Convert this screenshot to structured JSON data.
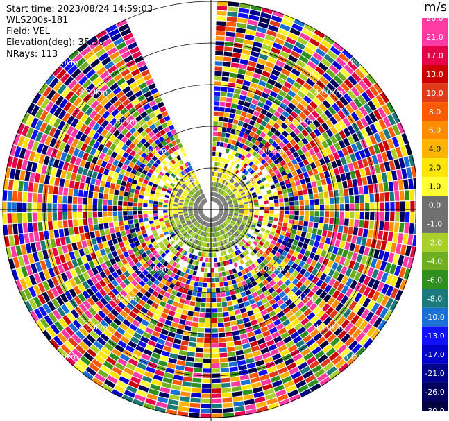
{
  "header": {
    "start_time": "Start time: 2023/08/24 14:59:03",
    "instrument": "WLS200s-181",
    "field": "Field: VEL",
    "elevation": "Elevation(deg): 35.30",
    "nrays": "NRays: 113"
  },
  "colorbar": {
    "title": "m/s",
    "ticks": [
      "26.0",
      "21.0",
      "17.0",
      "13.0",
      "10.0",
      "8.0",
      "6.0",
      "4.0",
      "2.0",
      "1.0",
      "0.0",
      "-1.0",
      "-2.0",
      "-4.0",
      "-6.0",
      "-8.0",
      "-10.0",
      "-13.0",
      "-17.0",
      "-21.0",
      "-26.0",
      "-30.0"
    ],
    "colors": [
      "#ff3aa3",
      "#ff3aa3",
      "#e6004a",
      "#cc0000",
      "#e03a1a",
      "#ff5a00",
      "#ff8c00",
      "#ffb400",
      "#ffe600",
      "#ffff33",
      "#707070",
      "#707070",
      "#a8cf2a",
      "#6fae1e",
      "#2f8f1f",
      "#1c7a7a",
      "#1a6fd6",
      "#1010ff",
      "#0000cc",
      "#00008b",
      "#00005c",
      "#000040"
    ]
  },
  "chart_data": {
    "type": "ppi",
    "field": "VEL",
    "units": "m/s",
    "nrays": 113,
    "elevation_deg": 35.3,
    "range_rings": [
      {
        "label": "1.00km",
        "quadrant": "all"
      },
      {
        "label": "2.00km",
        "quadrant": "all"
      },
      {
        "label": "3.00km",
        "quadrant": "all"
      },
      {
        "label": "4.00km",
        "quadrant": "all"
      },
      {
        "label": "5.00km",
        "quadrant": "all"
      }
    ],
    "ring_labels": [
      "1.00km",
      "2.00km",
      "3.00km",
      "4.00km",
      "5.00km"
    ],
    "missing_sector_deg": [
      -24,
      0
    ],
    "inner_near_zero_km": 1.0
  }
}
